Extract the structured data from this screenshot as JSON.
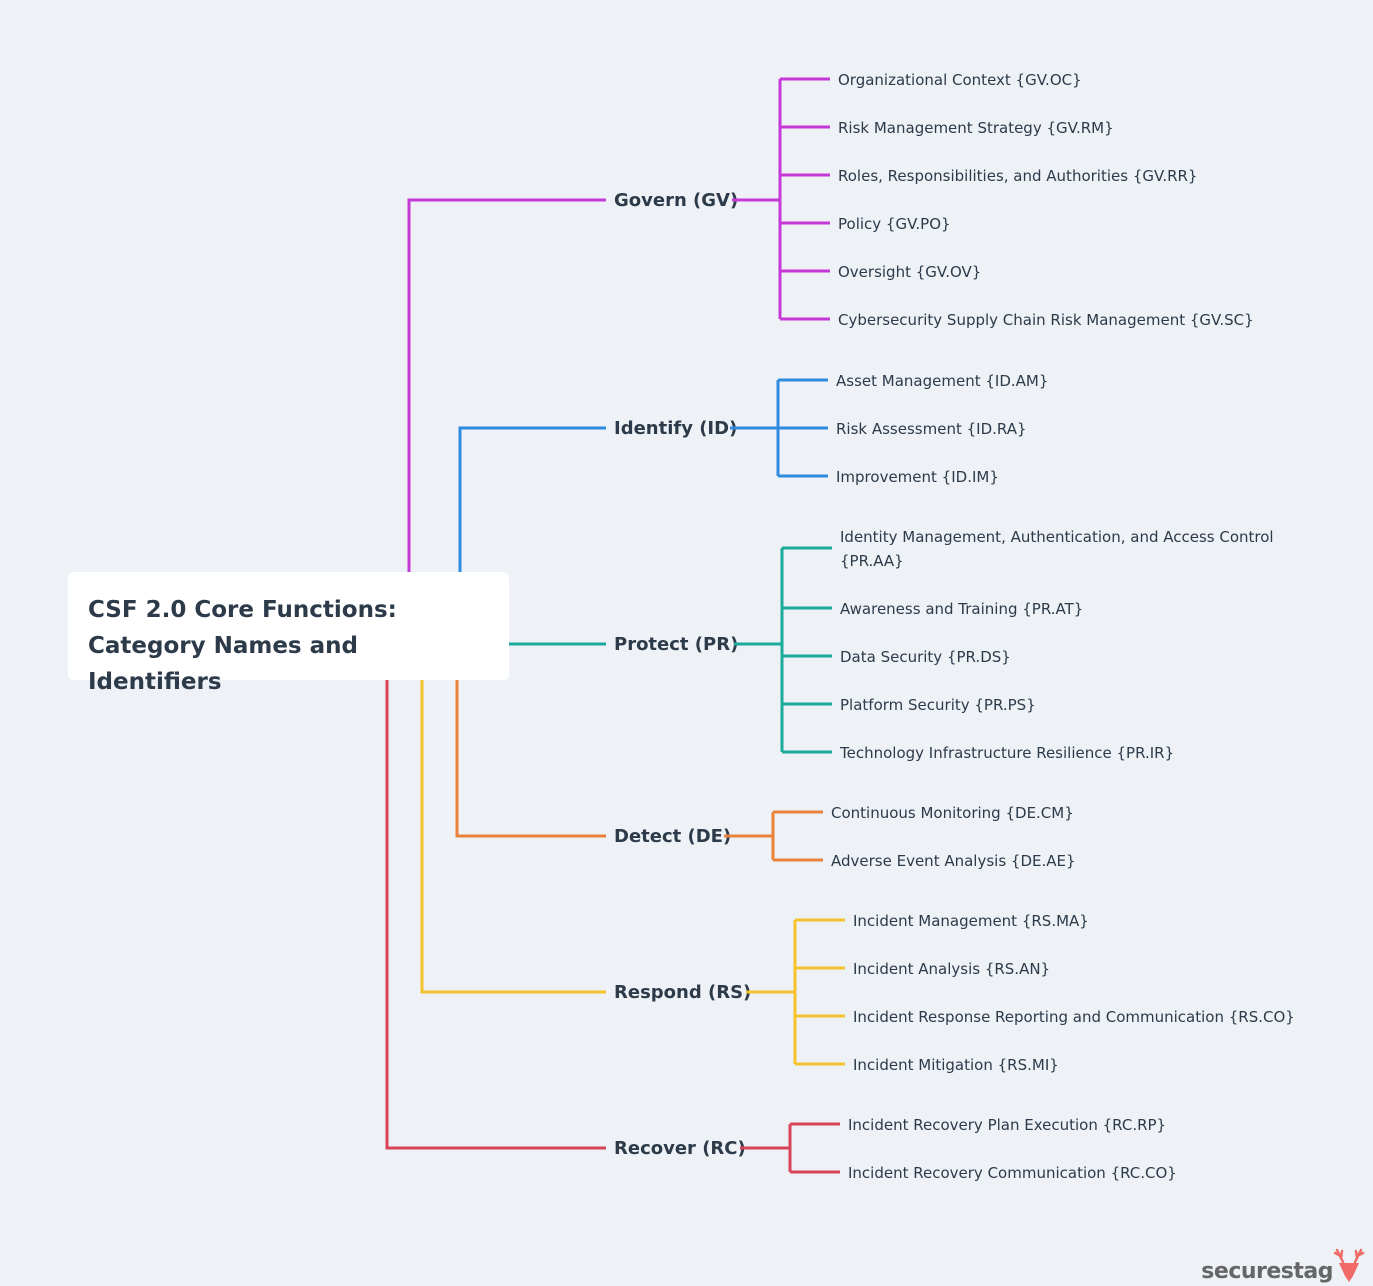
{
  "title": "CSF 2.0 Core Functions: Category Names and Identifiers",
  "functions": [
    {
      "label": "Govern (GV)",
      "color": "#c53ad6",
      "categories": [
        "Organizational Context {GV.OC}",
        "Risk Management Strategy {GV.RM}",
        "Roles, Responsibilities, and Authorities {GV.RR}",
        "Policy {GV.PO}",
        "Oversight {GV.OV}",
        "Cybersecurity Supply Chain Risk Management {GV.SC}"
      ]
    },
    {
      "label": "Identify (ID)",
      "color": "#2f8ae0",
      "categories": [
        "Asset Management {ID.AM}",
        "Risk Assessment {ID.RA}",
        "Improvement {ID.IM}"
      ]
    },
    {
      "label": "Protect (PR)",
      "color": "#1bab9c",
      "categories": [
        "Identity Management, Authentication, and Access Control|{PR.AA}",
        "Awareness and Training {PR.AT}",
        "Data Security {PR.DS}",
        "Platform Security {PR.PS}",
        "Technology Infrastructure Resilience {PR.IR}"
      ]
    },
    {
      "label": "Detect (DE)",
      "color": "#e8823a",
      "categories": [
        "Continuous Monitoring {DE.CM}",
        "Adverse Event Analysis {DE.AE}"
      ]
    },
    {
      "label": "Respond (RS)",
      "color": "#f5c12c",
      "categories": [
        "Incident Management {RS.MA}",
        "Incident Analysis {RS.AN}",
        "Incident Response Reporting and Communication {RS.CO}",
        "Incident Mitigation {RS.MI}"
      ]
    },
    {
      "label": "Recover (RC)",
      "color": "#d9435a",
      "categories": [
        "Incident Recovery Plan Execution {RC.RP}",
        "Incident Recovery Communication {RC.CO}"
      ]
    }
  ],
  "logo": {
    "text": "securestag",
    "color": "#f06a66"
  }
}
